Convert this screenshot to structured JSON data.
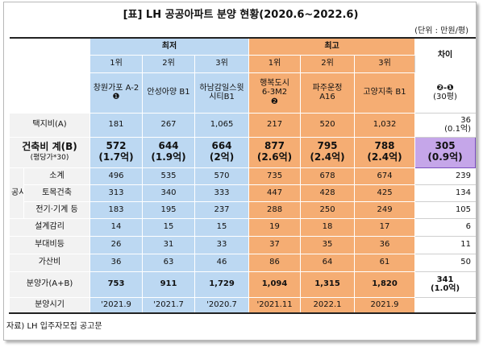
{
  "title": "[표] LH 공공아파트 분양 현황(2020.6~2022.6)",
  "unit": "(단위 : 만원/평)",
  "source": "자료) LH 입주자모집 공고문",
  "groups": {
    "lowest": "최저",
    "highest": "최고",
    "diff": "차이"
  },
  "ranks": [
    "1위",
    "2위",
    "3위",
    "1위",
    "2위",
    "3위"
  ],
  "complexes": [
    {
      "line1": "창원가포 A-2",
      "line2": "❶"
    },
    {
      "line1": "안성아양 B1",
      "line2": ""
    },
    {
      "line1": "하남감일스윗",
      "line2": "시티B1"
    },
    {
      "line1": "행복도시",
      "line2": "6-3M2",
      "line3": "❷"
    },
    {
      "line1": "파주운정",
      "line2": "A16"
    },
    {
      "line1": "고양지축 B1",
      "line2": ""
    }
  ],
  "diff_header": {
    "line1": "❷-❶",
    "line2": "(30평)"
  },
  "rows": {
    "land": {
      "label": "택지비(A)",
      "values": [
        "181",
        "267",
        "1,065",
        "217",
        "520",
        "1,032"
      ],
      "diff1": "36",
      "diff2": "(0.1억)"
    },
    "build": {
      "label": "건축비 계(B)",
      "sublabel": "(평당가*30)",
      "values": [
        "572",
        "644",
        "664",
        "877",
        "795",
        "788"
      ],
      "values2": [
        "(1.7억)",
        "(1.9억)",
        "(2억)",
        "(2.6억)",
        "(2.4억)",
        "(2.4억)"
      ],
      "diff1": "305",
      "diff2": "(0.9억)"
    },
    "construction_group": "공사비",
    "subtotal": {
      "label": "소계",
      "values": [
        "496",
        "535",
        "570",
        "735",
        "678",
        "674"
      ],
      "diff": "239"
    },
    "civil": {
      "label": "토목건축",
      "values": [
        "313",
        "340",
        "333",
        "447",
        "428",
        "425"
      ],
      "diff": "134"
    },
    "electric": {
      "label": "전기·기계 등",
      "values": [
        "183",
        "195",
        "237",
        "288",
        "250",
        "249"
      ],
      "diff": "105"
    },
    "design": {
      "label": "설계감리",
      "values": [
        "14",
        "15",
        "15",
        "19",
        "18",
        "17"
      ],
      "diff": "6"
    },
    "ancillary": {
      "label": "부대비등",
      "values": [
        "26",
        "31",
        "33",
        "37",
        "35",
        "36"
      ],
      "diff": "11"
    },
    "surcharge": {
      "label": "가산비",
      "values": [
        "36",
        "63",
        "46",
        "86",
        "64",
        "61"
      ],
      "diff": "50"
    },
    "price": {
      "label": "분양가(A+B)",
      "values": [
        "753",
        "911",
        "1,729",
        "1,094",
        "1,315",
        "1,820"
      ],
      "diff1": "341",
      "diff2": "(1.0억)"
    },
    "period": {
      "label": "분양시기",
      "values": [
        "'2021.9",
        "'2021.7",
        "'2020.7",
        "'2021.11",
        "2022.1",
        "2021.9"
      ],
      "diff": ""
    }
  }
}
